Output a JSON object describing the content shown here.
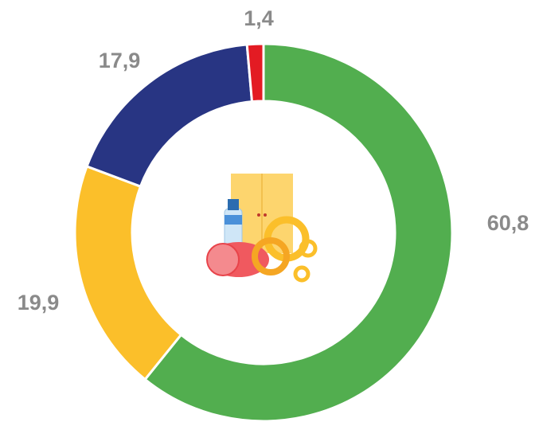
{
  "chart_data": {
    "type": "donut",
    "categories": [
      null,
      null,
      null,
      null
    ],
    "values": [
      60.8,
      19.9,
      17.9,
      1.4
    ],
    "value_labels": [
      "60,8",
      "19,9",
      "17,9",
      "1,4"
    ],
    "colors": [
      "#52ae4f",
      "#fbbf2a",
      "#283583",
      "#e31b23"
    ]
  }
}
